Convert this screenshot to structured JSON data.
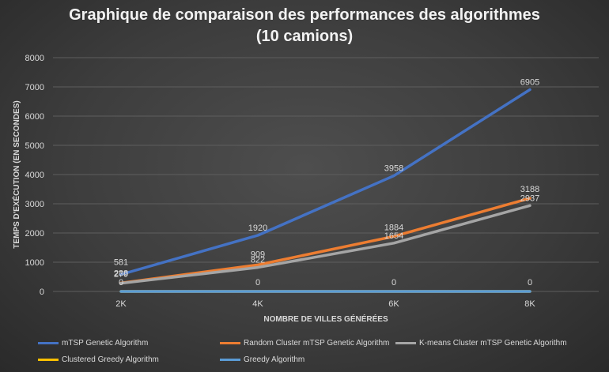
{
  "chart_data": {
    "type": "line",
    "title_line1": "Graphique de comparaison des performances des algorithmes",
    "title_line2": "(10 camions)",
    "xlabel": "NOMBRE DE VILLES GÉNÉRÉES",
    "ylabel": "TEMPS D'EXÉCUTION (EN SECONDES)",
    "categories": [
      "2K",
      "4K",
      "6K",
      "8K"
    ],
    "ylim": [
      0,
      8000
    ],
    "yticks": [
      "0",
      "1000",
      "2000",
      "3000",
      "4000",
      "5000",
      "6000",
      "7000",
      "8000"
    ],
    "grid": true,
    "legend_position": "bottom",
    "series": [
      {
        "name": "mTSP Genetic Algorithm",
        "color": "#4472c4",
        "values": [
          581,
          1920,
          3958,
          6905
        ],
        "labels": [
          "581",
          "1920",
          "3958",
          "6905"
        ]
      },
      {
        "name": "Random Cluster mTSP Genetic Algorithm",
        "color": "#ed7d31",
        "values": [
          288,
          909,
          1884,
          3188
        ],
        "labels": [
          "288",
          "909",
          "1884",
          "3188"
        ]
      },
      {
        "name": "K-means Cluster mTSP Genetic Algorithm",
        "color": "#a5a5a5",
        "values": [
          279,
          822,
          1654,
          2937
        ],
        "labels": [
          "279",
          "822",
          "1654",
          "2937"
        ]
      },
      {
        "name": "Clustered Greedy Algorithm",
        "color": "#ffc000",
        "values": [
          0,
          0,
          0,
          0
        ],
        "labels": [
          "",
          "",
          "",
          ""
        ]
      },
      {
        "name": "Greedy Algorithm",
        "color": "#5b9bd5",
        "values": [
          0,
          0,
          0,
          0
        ],
        "labels": [
          "0",
          "0",
          "0",
          "0"
        ]
      }
    ]
  }
}
